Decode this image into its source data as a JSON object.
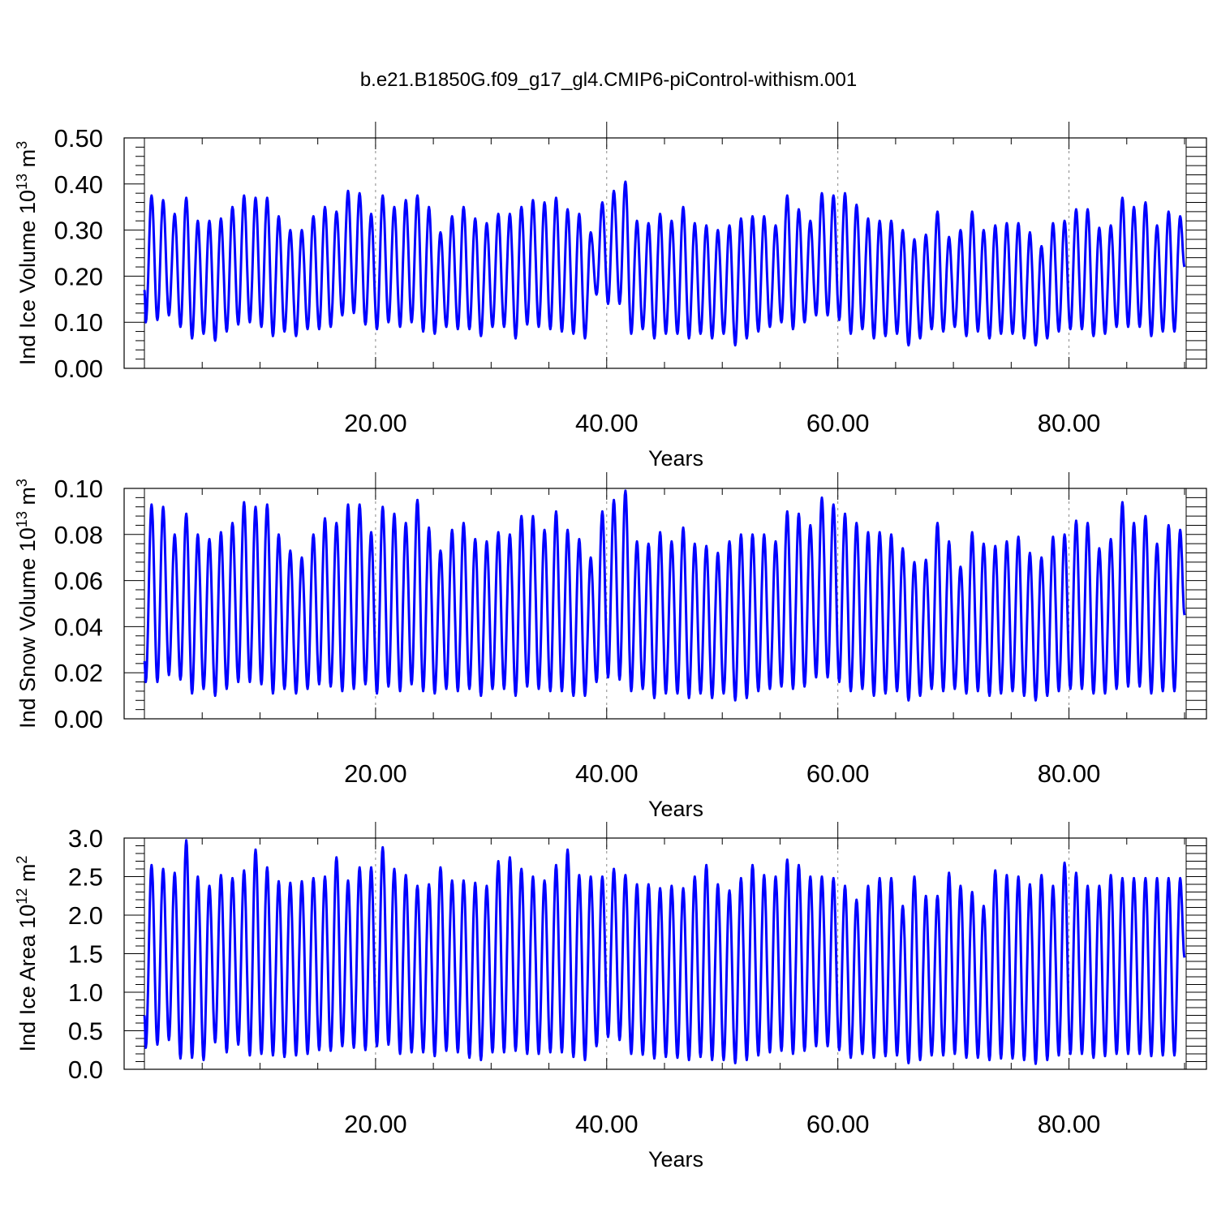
{
  "title": "b.e21.B1850G.f09_g17_gl4.CMIP6-piControl-withism.001",
  "colors": {
    "series": "#0000ff",
    "axes": "#000000",
    "grid": "#888888"
  },
  "chart_data": [
    {
      "type": "line",
      "ylabel": "Ind Ice Volume 10¹³ m³",
      "xlabel": "Years",
      "xlim": [
        0,
        90
      ],
      "ylim": [
        0,
        0.5
      ],
      "xticks": [
        20,
        40,
        60,
        80
      ],
      "xticklabels": [
        "20.00",
        "40.00",
        "60.00",
        "80.00"
      ],
      "yticks": [
        0,
        0.1,
        0.2,
        0.3,
        0.4,
        0.5
      ],
      "yticklabels": [
        "0.00",
        "0.10",
        "0.20",
        "0.30",
        "0.40",
        "0.50"
      ],
      "grid": "vertical dashed at major x ticks",
      "series": [
        {
          "start_value": 0.17,
          "end_value": 0.22,
          "cycles_per_year": 1,
          "peaks": [
            0.375,
            0.365,
            0.335,
            0.37,
            0.32,
            0.32,
            0.325,
            0.35,
            0.375,
            0.37,
            0.37,
            0.33,
            0.3,
            0.3,
            0.33,
            0.35,
            0.34,
            0.385,
            0.38,
            0.335,
            0.375,
            0.35,
            0.365,
            0.375,
            0.35,
            0.295,
            0.33,
            0.35,
            0.325,
            0.315,
            0.335,
            0.335,
            0.35,
            0.365,
            0.36,
            0.37,
            0.345,
            0.335,
            0.295,
            0.36,
            0.385,
            0.405,
            0.32,
            0.315,
            0.335,
            0.32,
            0.35,
            0.315,
            0.31,
            0.3,
            0.31,
            0.325,
            0.33,
            0.33,
            0.31,
            0.375,
            0.345,
            0.32,
            0.38,
            0.375,
            0.38,
            0.355,
            0.325,
            0.32,
            0.32,
            0.3,
            0.28,
            0.29,
            0.34,
            0.285,
            0.3,
            0.34,
            0.3,
            0.31,
            0.315,
            0.315,
            0.295,
            0.265,
            0.315,
            0.32,
            0.345,
            0.345,
            0.305,
            0.31,
            0.37,
            0.35,
            0.36,
            0.31,
            0.34,
            0.33
          ],
          "troughs": [
            0.1,
            0.105,
            0.115,
            0.09,
            0.065,
            0.075,
            0.06,
            0.08,
            0.095,
            0.1,
            0.09,
            0.07,
            0.08,
            0.07,
            0.085,
            0.085,
            0.09,
            0.115,
            0.12,
            0.095,
            0.085,
            0.1,
            0.09,
            0.1,
            0.08,
            0.075,
            0.09,
            0.085,
            0.085,
            0.07,
            0.09,
            0.09,
            0.065,
            0.095,
            0.09,
            0.085,
            0.08,
            0.075,
            0.065,
            0.16,
            0.14,
            0.14,
            0.075,
            0.085,
            0.065,
            0.075,
            0.075,
            0.065,
            0.075,
            0.065,
            0.075,
            0.05,
            0.065,
            0.08,
            0.09,
            0.1,
            0.085,
            0.1,
            0.115,
            0.115,
            0.105,
            0.075,
            0.085,
            0.065,
            0.07,
            0.075,
            0.05,
            0.065,
            0.085,
            0.08,
            0.09,
            0.07,
            0.08,
            0.065,
            0.075,
            0.075,
            0.065,
            0.05,
            0.065,
            0.08,
            0.085,
            0.085,
            0.07,
            0.075,
            0.09,
            0.09,
            0.09,
            0.07,
            0.08,
            0.08
          ]
        }
      ]
    },
    {
      "type": "line",
      "ylabel": "Ind Snow Volume 10¹³ m³",
      "xlabel": "Years",
      "xlim": [
        0,
        90
      ],
      "ylim": [
        0,
        0.1
      ],
      "xticks": [
        20,
        40,
        60,
        80
      ],
      "xticklabels": [
        "20.00",
        "40.00",
        "60.00",
        "80.00"
      ],
      "yticks": [
        0,
        0.02,
        0.04,
        0.06,
        0.08,
        0.1
      ],
      "yticklabels": [
        "0.00",
        "0.02",
        "0.04",
        "0.06",
        "0.08",
        "0.10"
      ],
      "grid": "vertical dashed at major x ticks",
      "series": [
        {
          "start_value": 0.025,
          "end_value": 0.045,
          "cycles_per_year": 1,
          "peaks": [
            0.093,
            0.092,
            0.08,
            0.089,
            0.08,
            0.078,
            0.081,
            0.085,
            0.094,
            0.092,
            0.093,
            0.08,
            0.073,
            0.07,
            0.08,
            0.087,
            0.085,
            0.093,
            0.093,
            0.081,
            0.092,
            0.089,
            0.085,
            0.095,
            0.083,
            0.073,
            0.082,
            0.085,
            0.078,
            0.077,
            0.081,
            0.08,
            0.088,
            0.088,
            0.082,
            0.09,
            0.082,
            0.078,
            0.07,
            0.09,
            0.095,
            0.099,
            0.077,
            0.076,
            0.081,
            0.077,
            0.083,
            0.076,
            0.075,
            0.072,
            0.077,
            0.08,
            0.08,
            0.08,
            0.077,
            0.09,
            0.089,
            0.084,
            0.096,
            0.093,
            0.089,
            0.085,
            0.081,
            0.081,
            0.08,
            0.074,
            0.068,
            0.069,
            0.085,
            0.077,
            0.066,
            0.081,
            0.076,
            0.075,
            0.077,
            0.079,
            0.072,
            0.07,
            0.079,
            0.08,
            0.086,
            0.085,
            0.074,
            0.078,
            0.094,
            0.085,
            0.088,
            0.076,
            0.084,
            0.082
          ],
          "troughs": [
            0.016,
            0.016,
            0.019,
            0.017,
            0.011,
            0.013,
            0.01,
            0.013,
            0.016,
            0.016,
            0.015,
            0.011,
            0.013,
            0.011,
            0.013,
            0.015,
            0.014,
            0.012,
            0.013,
            0.015,
            0.011,
            0.014,
            0.012,
            0.015,
            0.012,
            0.011,
            0.013,
            0.012,
            0.013,
            0.01,
            0.013,
            0.013,
            0.01,
            0.014,
            0.013,
            0.012,
            0.012,
            0.01,
            0.01,
            0.016,
            0.018,
            0.017,
            0.012,
            0.013,
            0.009,
            0.011,
            0.011,
            0.009,
            0.011,
            0.009,
            0.011,
            0.008,
            0.009,
            0.012,
            0.013,
            0.014,
            0.013,
            0.014,
            0.018,
            0.018,
            0.016,
            0.012,
            0.013,
            0.01,
            0.011,
            0.012,
            0.008,
            0.01,
            0.013,
            0.012,
            0.013,
            0.011,
            0.012,
            0.01,
            0.011,
            0.012,
            0.01,
            0.008,
            0.01,
            0.012,
            0.013,
            0.013,
            0.011,
            0.011,
            0.013,
            0.014,
            0.014,
            0.011,
            0.012,
            0.012
          ]
        }
      ]
    },
    {
      "type": "line",
      "ylabel": "Ind Ice Area 10¹² m²",
      "xlabel": "Years",
      "xlim": [
        0,
        90
      ],
      "ylim": [
        0,
        3
      ],
      "xticks": [
        20,
        40,
        60,
        80
      ],
      "xticklabels": [
        "20.00",
        "40.00",
        "60.00",
        "80.00"
      ],
      "yticks": [
        0,
        0.5,
        1,
        1.5,
        2,
        2.5,
        3
      ],
      "yticklabels": [
        "0.0",
        "0.5",
        "1.0",
        "1.5",
        "2.0",
        "2.5",
        "3.0"
      ],
      "grid": "vertical dashed at major x ticks",
      "series": [
        {
          "start_value": 0.7,
          "end_value": 1.45,
          "cycles_per_year": 1,
          "peaks": [
            2.65,
            2.6,
            2.55,
            2.97,
            2.5,
            2.38,
            2.52,
            2.48,
            2.58,
            2.85,
            2.62,
            2.44,
            2.42,
            2.44,
            2.48,
            2.5,
            2.75,
            2.45,
            2.62,
            2.62,
            2.88,
            2.6,
            2.52,
            2.38,
            2.4,
            2.62,
            2.45,
            2.45,
            2.42,
            2.38,
            2.7,
            2.75,
            2.6,
            2.5,
            2.45,
            2.65,
            2.85,
            2.52,
            2.5,
            2.5,
            2.6,
            2.52,
            2.4,
            2.4,
            2.35,
            2.38,
            2.35,
            2.5,
            2.65,
            2.4,
            2.32,
            2.48,
            2.65,
            2.52,
            2.5,
            2.72,
            2.65,
            2.5,
            2.5,
            2.48,
            2.38,
            2.2,
            2.38,
            2.48,
            2.48,
            2.12,
            2.5,
            2.25,
            2.25,
            2.55,
            2.38,
            2.3,
            2.12,
            2.58,
            2.52,
            2.5,
            2.4,
            2.52,
            2.38,
            2.68,
            2.55,
            2.38,
            2.38,
            2.52,
            2.48,
            2.48,
            2.48,
            2.48,
            2.48,
            2.48
          ],
          "troughs": [
            0.28,
            0.32,
            0.38,
            0.14,
            0.15,
            0.12,
            0.35,
            0.22,
            0.32,
            0.18,
            0.2,
            0.18,
            0.16,
            0.18,
            0.2,
            0.25,
            0.24,
            0.3,
            0.28,
            0.25,
            0.3,
            0.32,
            0.2,
            0.22,
            0.22,
            0.17,
            0.24,
            0.22,
            0.15,
            0.12,
            0.22,
            0.22,
            0.24,
            0.2,
            0.2,
            0.22,
            0.22,
            0.16,
            0.12,
            0.3,
            0.42,
            0.38,
            0.2,
            0.19,
            0.14,
            0.16,
            0.15,
            0.12,
            0.16,
            0.12,
            0.12,
            0.08,
            0.12,
            0.18,
            0.22,
            0.24,
            0.2,
            0.24,
            0.3,
            0.3,
            0.25,
            0.15,
            0.2,
            0.15,
            0.17,
            0.18,
            0.08,
            0.12,
            0.18,
            0.18,
            0.2,
            0.15,
            0.15,
            0.12,
            0.14,
            0.14,
            0.12,
            0.07,
            0.12,
            0.18,
            0.2,
            0.2,
            0.15,
            0.17,
            0.2,
            0.2,
            0.2,
            0.17,
            0.18,
            0.18
          ]
        }
      ]
    }
  ]
}
